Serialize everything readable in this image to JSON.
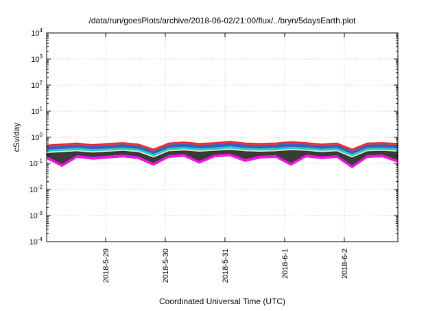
{
  "chart_data": {
    "type": "area",
    "title": "/data/run/goesPlots/archive/2018-06-02/21:00/flux/../bryn/5daysEarth.plot",
    "xlabel": "Coordinated Universal Time (UTC)",
    "ylabel": "cSv/day",
    "y_scale": "log",
    "ylim": [
      0.0001,
      10000
    ],
    "y_ticks": [
      {
        "base": "10",
        "exp": "4"
      },
      {
        "base": "10",
        "exp": "3"
      },
      {
        "base": "10",
        "exp": "2"
      },
      {
        "base": "10",
        "exp": "1"
      },
      {
        "base": "10",
        "exp": "0"
      },
      {
        "base": "10",
        "exp": "-1"
      },
      {
        "base": "10",
        "exp": "-2"
      },
      {
        "base": "10",
        "exp": "-3"
      },
      {
        "base": "10",
        "exp": "-4"
      }
    ],
    "x_ticks": [
      "2018-5-29",
      "2018-5-30",
      "2018-5-31",
      "2018-6-1",
      "2018-6-2"
    ],
    "x_range_days": [
      "2018-05-28 01:00",
      "2018-06-02 21:00"
    ],
    "grid": true,
    "series_colors": [
      "#e8222d",
      "#2f63c4",
      "#23d4cf",
      "#f3f0c8",
      "#2a2a2a",
      "#3a3a3a",
      "#ff11ee"
    ],
    "x": [
      0,
      0.25,
      0.5,
      0.75,
      1.0,
      1.25,
      1.5,
      1.75,
      2.0,
      2.25,
      2.5,
      2.75,
      3.0,
      3.25,
      3.5,
      3.75,
      4.0,
      4.25,
      4.5,
      4.75,
      5.0,
      5.25,
      5.5,
      5.75
    ],
    "series": [
      {
        "values": [
          0.5,
          0.55,
          0.6,
          0.52,
          0.58,
          0.62,
          0.55,
          0.35,
          0.6,
          0.66,
          0.58,
          0.62,
          0.7,
          0.6,
          0.58,
          0.6,
          0.68,
          0.62,
          0.55,
          0.6,
          0.35,
          0.6,
          0.62,
          0.58
        ]
      },
      {
        "values": [
          0.42,
          0.46,
          0.5,
          0.45,
          0.48,
          0.52,
          0.46,
          0.28,
          0.5,
          0.55,
          0.48,
          0.52,
          0.58,
          0.5,
          0.48,
          0.5,
          0.56,
          0.52,
          0.46,
          0.5,
          0.28,
          0.5,
          0.52,
          0.48
        ]
      },
      {
        "values": [
          0.32,
          0.35,
          0.38,
          0.34,
          0.36,
          0.39,
          0.35,
          0.22,
          0.38,
          0.42,
          0.36,
          0.39,
          0.44,
          0.38,
          0.36,
          0.38,
          0.42,
          0.39,
          0.35,
          0.38,
          0.22,
          0.38,
          0.39,
          0.36
        ]
      },
      {
        "values": [
          0.27,
          0.29,
          0.31,
          0.28,
          0.3,
          0.32,
          0.29,
          0.18,
          0.31,
          0.34,
          0.3,
          0.32,
          0.36,
          0.31,
          0.3,
          0.31,
          0.35,
          0.32,
          0.29,
          0.31,
          0.18,
          0.31,
          0.32,
          0.3
        ]
      },
      {
        "values": [
          0.24,
          0.26,
          0.28,
          0.25,
          0.27,
          0.29,
          0.26,
          0.16,
          0.28,
          0.3,
          0.27,
          0.29,
          0.32,
          0.28,
          0.27,
          0.28,
          0.31,
          0.29,
          0.26,
          0.28,
          0.16,
          0.28,
          0.29,
          0.27
        ]
      },
      {
        "values": [
          0.22,
          0.24,
          0.26,
          0.23,
          0.25,
          0.27,
          0.24,
          0.15,
          0.26,
          0.28,
          0.25,
          0.27,
          0.29,
          0.26,
          0.25,
          0.26,
          0.29,
          0.27,
          0.24,
          0.26,
          0.15,
          0.26,
          0.27,
          0.25
        ]
      },
      {
        "values": [
          0.18,
          0.09,
          0.2,
          0.17,
          0.19,
          0.21,
          0.18,
          0.1,
          0.2,
          0.22,
          0.12,
          0.21,
          0.23,
          0.14,
          0.19,
          0.2,
          0.1,
          0.21,
          0.18,
          0.2,
          0.08,
          0.2,
          0.21,
          0.13
        ]
      }
    ]
  }
}
